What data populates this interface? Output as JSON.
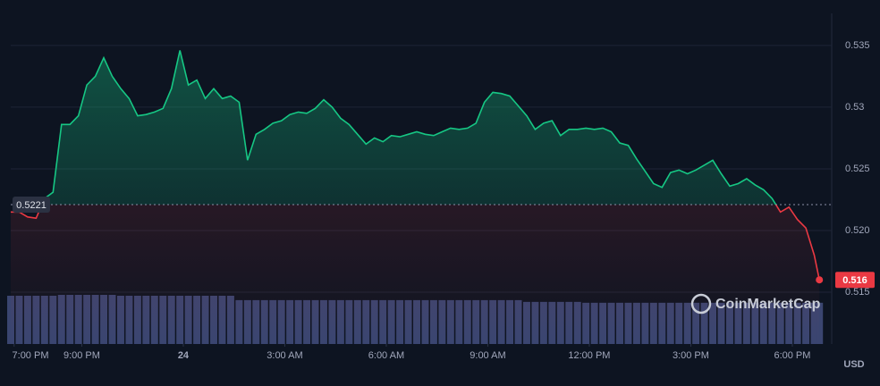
{
  "chart_data": {
    "type": "line",
    "x": [
      18.9,
      19.15,
      19.4,
      19.65,
      19.9,
      20.15,
      20.4,
      20.65,
      20.9,
      21.15,
      21.4,
      21.65,
      21.9,
      22.15,
      22.4,
      22.65,
      22.9,
      23.15,
      23.4,
      23.65,
      23.9,
      24.15,
      24.4,
      24.65,
      24.9,
      25.15,
      25.4,
      25.65,
      25.9,
      26.15,
      26.4,
      26.65,
      26.9,
      27.15,
      27.4,
      27.65,
      27.9,
      28.15,
      28.4,
      28.65,
      28.9,
      29.15,
      29.4,
      29.65,
      29.9,
      30.15,
      30.4,
      30.65,
      30.9,
      31.15,
      31.4,
      31.65,
      31.9,
      32.15,
      32.4,
      32.65,
      32.9,
      33.15,
      33.4,
      33.65,
      33.9,
      34.15,
      34.4,
      34.65,
      34.9,
      35.15,
      35.4,
      35.65,
      35.9,
      36.15,
      36.4,
      36.65,
      36.9,
      37.15,
      37.4,
      37.65,
      37.9,
      38.15,
      38.4,
      38.65,
      38.9,
      39.15,
      39.4,
      39.65,
      39.9,
      40.15,
      40.4,
      40.65,
      40.9,
      41.15,
      41.4,
      41.65,
      41.9,
      42.15,
      42.4,
      42.65,
      42.8
    ],
    "values": [
      0.5215,
      0.5215,
      0.5211,
      0.521,
      0.5226,
      0.5231,
      0.5286,
      0.5286,
      0.5293,
      0.5318,
      0.5325,
      0.534,
      0.5325,
      0.5315,
      0.5307,
      0.5293,
      0.5294,
      0.5296,
      0.5299,
      0.5315,
      0.5346,
      0.5318,
      0.5322,
      0.5307,
      0.5315,
      0.5307,
      0.5309,
      0.5304,
      0.5257,
      0.5278,
      0.5282,
      0.5287,
      0.5289,
      0.5294,
      0.5296,
      0.5295,
      0.5299,
      0.5306,
      0.53,
      0.5291,
      0.5286,
      0.5278,
      0.527,
      0.5275,
      0.5272,
      0.5277,
      0.5276,
      0.5278,
      0.528,
      0.5278,
      0.5277,
      0.528,
      0.5283,
      0.5282,
      0.5283,
      0.5287,
      0.5304,
      0.5312,
      0.5311,
      0.5309,
      0.5301,
      0.5293,
      0.5282,
      0.5287,
      0.5289,
      0.5277,
      0.5282,
      0.5282,
      0.5283,
      0.5282,
      0.5283,
      0.528,
      0.5271,
      0.5269,
      0.5258,
      0.5248,
      0.5238,
      0.5235,
      0.5247,
      0.5249,
      0.5246,
      0.5249,
      0.5253,
      0.5257,
      0.5246,
      0.5236,
      0.5238,
      0.5242,
      0.5237,
      0.5233,
      0.5226,
      0.5215,
      0.5219,
      0.5209,
      0.5202,
      0.518,
      0.516
    ],
    "volume": [
      55,
      55,
      55,
      55,
      55,
      55,
      56,
      56,
      56,
      56,
      56,
      56,
      56,
      55,
      55,
      55,
      55,
      55,
      55,
      55,
      55,
      55,
      55,
      55,
      55,
      55,
      55,
      50,
      50,
      50,
      50,
      50,
      50,
      50,
      50,
      50,
      50,
      50,
      50,
      50,
      50,
      50,
      50,
      50,
      50,
      50,
      50,
      50,
      50,
      50,
      50,
      50,
      50,
      50,
      50,
      50,
      50,
      50,
      50,
      50,
      50,
      48,
      48,
      48,
      48,
      48,
      48,
      48,
      47,
      47,
      47,
      47,
      47,
      47,
      47,
      47,
      47,
      47,
      47,
      47,
      47,
      47,
      47,
      47,
      47,
      47,
      47,
      47,
      47,
      47,
      47,
      47,
      47,
      47,
      47,
      47,
      47
    ],
    "reference_price": 0.5221,
    "last_price": 0.516,
    "up_color": "#16c784",
    "down_color": "#ea3943",
    "volume_color": "#3a4570",
    "xlim": [
      18.9,
      42.9
    ],
    "xticks": [
      {
        "value": 19,
        "label": "7:00 PM"
      },
      {
        "value": 21,
        "label": "9:00 PM"
      },
      {
        "value": 24,
        "label": "24"
      },
      {
        "value": 27,
        "label": "3:00 AM"
      },
      {
        "value": 30,
        "label": "6:00 AM"
      },
      {
        "value": 33,
        "label": "9:00 AM"
      },
      {
        "value": 36,
        "label": "12:00 PM"
      },
      {
        "value": 39,
        "label": "3:00 PM"
      },
      {
        "value": 42,
        "label": "6:00 PM"
      }
    ],
    "ylim": [
      0.5108,
      0.5376
    ],
    "yticks": [
      0.515,
      {
        "value": 0.52,
        "label": "0.520"
      },
      0.525,
      0.53,
      0.535
    ],
    "grid": true,
    "currency": "USD",
    "watermark": "CoinMarketCap"
  }
}
